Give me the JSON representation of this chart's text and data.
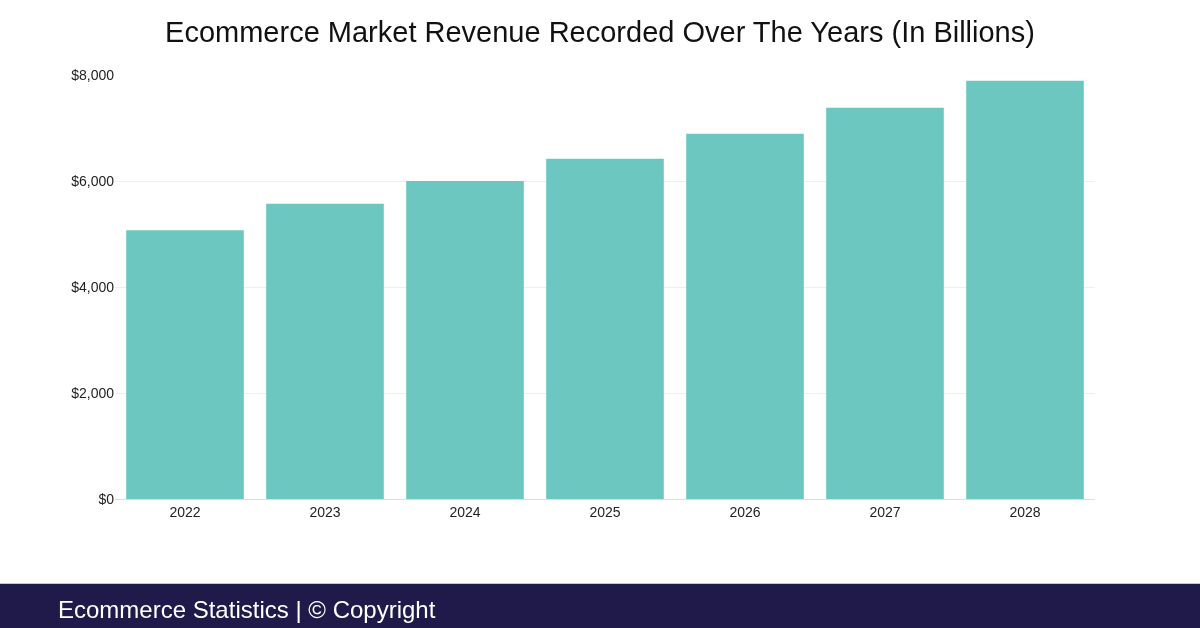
{
  "chart_data": {
    "type": "bar",
    "title": "Ecommerce Market Revenue Recorded Over The Years (In Billions)",
    "categories": [
      "2022",
      "2023",
      "2024",
      "2025",
      "2026",
      "2027",
      "2028"
    ],
    "values": [
      5070,
      5570,
      6000,
      6420,
      6890,
      7380,
      7890
    ],
    "color": "#6cc7c1",
    "ylim": [
      0,
      8000
    ],
    "yticks": [
      {
        "value": 0,
        "label": "$0"
      },
      {
        "value": 2000,
        "label": "$2,000"
      },
      {
        "value": 4000,
        "label": "$4,000"
      },
      {
        "value": 6000,
        "label": "$6,000"
      },
      {
        "value": 8000,
        "label": "$8,000"
      }
    ],
    "grid": "y",
    "annotations": [
      "Ecommerce Statistics | © Copyright"
    ]
  }
}
